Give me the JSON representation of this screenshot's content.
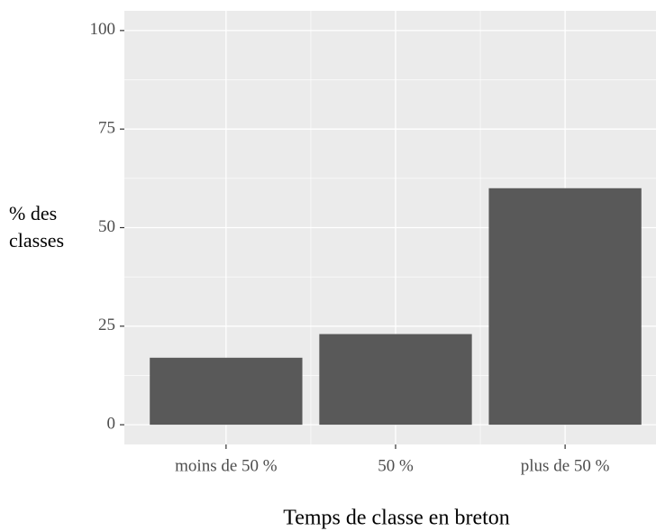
{
  "chart_data": {
    "type": "bar",
    "categories": [
      "moins de 50 %",
      "50 %",
      "plus de 50 %"
    ],
    "values": [
      17,
      23,
      60
    ],
    "color": "#595959",
    "ylim": [
      -5,
      105
    ],
    "yticks": [
      0,
      25,
      50,
      75,
      100
    ],
    "grid": true,
    "x_label": "Temps de classe en breton",
    "y_label": "% des classes"
  }
}
